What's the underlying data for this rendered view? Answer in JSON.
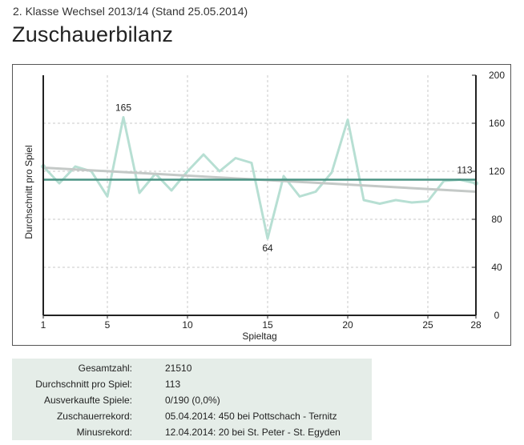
{
  "header": {
    "subtitle": "2. Klasse Wechsel 2013/14 (Stand 25.05.2014)",
    "title": "Zuschauerbilanz"
  },
  "chart_data": {
    "type": "line",
    "xlabel": "Spieltag",
    "ylabel": "Durchschnitt pro Spiel",
    "xlim": [
      1,
      28
    ],
    "ylim": [
      0,
      200
    ],
    "x_ticks": [
      1,
      5,
      10,
      15,
      20,
      25,
      28
    ],
    "y_ticks": [
      0,
      40,
      80,
      120,
      160,
      200
    ],
    "y_axis_side": "right",
    "grid": true,
    "x": [
      1,
      2,
      3,
      4,
      5,
      6,
      7,
      8,
      9,
      10,
      11,
      12,
      13,
      14,
      15,
      16,
      17,
      18,
      19,
      20,
      21,
      22,
      23,
      24,
      25,
      26,
      27,
      28
    ],
    "series": [
      {
        "values": [
          124,
          110,
          124,
          120,
          99,
          165,
          102,
          118,
          104,
          120,
          134,
          120,
          131,
          127,
          64,
          116,
          99,
          103,
          119,
          163,
          96,
          93,
          96,
          94,
          95,
          112,
          113,
          110
        ],
        "color": "#b7dfd3"
      }
    ],
    "trend": {
      "start": 123,
      "end": 103,
      "color": "#c4c9c7"
    },
    "average": {
      "value": 113,
      "color": "#4a9484"
    },
    "annotations": [
      {
        "x": 6,
        "y": 165,
        "text": "165"
      },
      {
        "x": 15,
        "y": 64,
        "text": "64"
      },
      {
        "x": 28,
        "y": 113,
        "text": "113"
      }
    ]
  },
  "stats": [
    {
      "label": "Gesamtzahl:",
      "value": "21510"
    },
    {
      "label": "Durchschnitt pro Spiel:",
      "value": "113"
    },
    {
      "label": "Ausverkaufte Spiele:",
      "value": "0/190 (0,0%)"
    },
    {
      "label": "Zuschauerrekord:",
      "value": "05.04.2014: 450 bei Pottschach - Ternitz"
    },
    {
      "label": "Minusrekord:",
      "value": "12.04.2014: 20 bei St. Peter - St. Egyden"
    }
  ]
}
